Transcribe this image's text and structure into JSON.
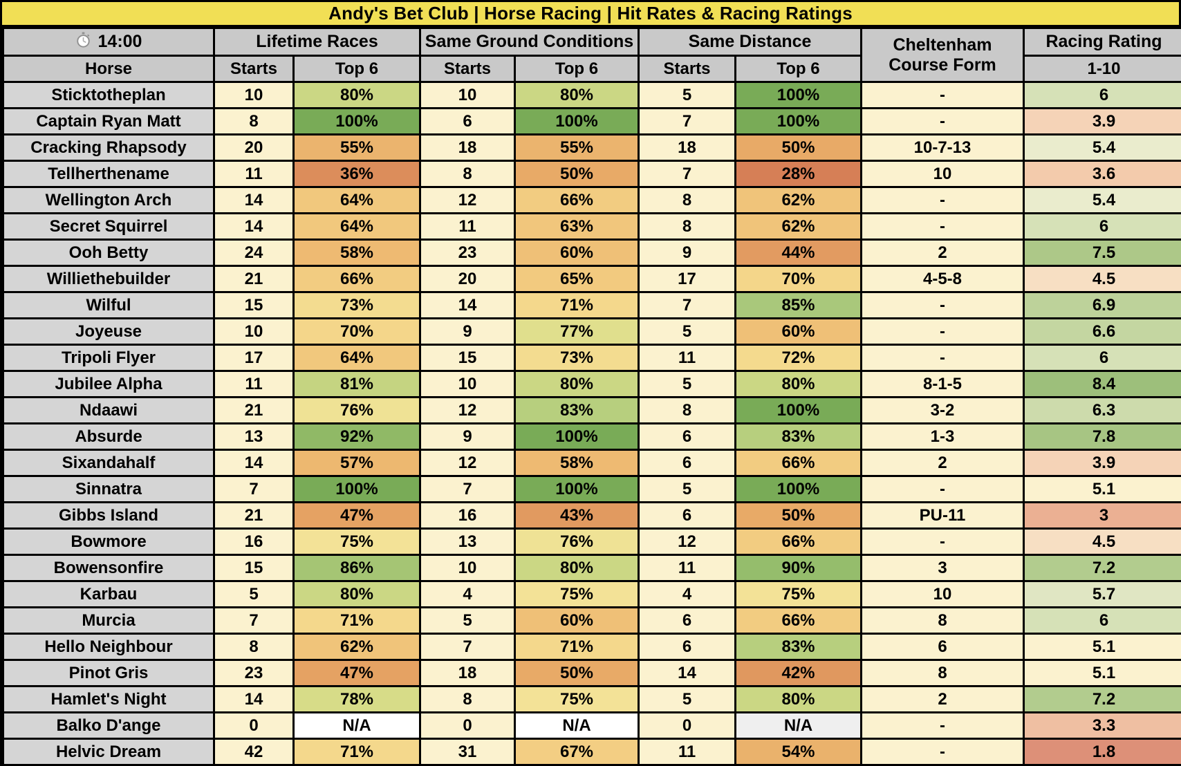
{
  "title": "Andy's Bet Club | Horse Racing | Hit Rates & Racing Ratings",
  "colors": {
    "title-bg": "#F1DF55",
    "header-bg": "#C9C9C9",
    "horse-bg": "#D5D5D5",
    "cream": "#FBF2CF",
    "border": "#000000",
    "top-green": "#79AB57",
    "low-red": "#D67F56",
    "na-white": "#FFFFFF",
    "na-gray": "#EFEFEF"
  },
  "header": {
    "time": "14:00",
    "time_icon": "stopwatch-icon",
    "horse_label": "Horse",
    "groups": [
      {
        "label": "Lifetime Races",
        "sub": [
          "Starts",
          "Top 6"
        ]
      },
      {
        "label": "Same Ground Conditions",
        "sub": [
          "Starts",
          "Top 6"
        ]
      },
      {
        "label": "Same Distance",
        "sub": [
          "Starts",
          "Top 6"
        ]
      }
    ],
    "course_form_label": "Cheltenham Course Form",
    "rating_label": "Racing Rating",
    "rating_scale": "1-10"
  },
  "chart_data": {
    "type": "table",
    "title": "Andy's Bet Club | Horse Racing | Hit Rates & Racing Ratings",
    "columns": [
      "Horse",
      "Lifetime Races Starts",
      "Lifetime Races Top 6",
      "Same Ground Conditions Starts",
      "Same Ground Conditions Top 6",
      "Same Distance Starts",
      "Same Distance Top 6",
      "Cheltenham Course Form",
      "Racing Rating 1-10"
    ],
    "rows": [
      {
        "horse": "Sticktotheplan",
        "cells": [
          {
            "v": "10"
          },
          {
            "v": "80%",
            "c": "#CBD784"
          },
          {
            "v": "10"
          },
          {
            "v": "80%",
            "c": "#CBD784"
          },
          {
            "v": "5"
          },
          {
            "v": "100%",
            "c": "#79AB57"
          },
          {
            "v": "-"
          },
          {
            "v": "6",
            "c": "#D6E1B7"
          }
        ]
      },
      {
        "horse": "Captain Ryan Matt",
        "cells": [
          {
            "v": "8"
          },
          {
            "v": "100%",
            "c": "#79AB57"
          },
          {
            "v": "6"
          },
          {
            "v": "100%",
            "c": "#79AB57"
          },
          {
            "v": "7"
          },
          {
            "v": "100%",
            "c": "#79AB57"
          },
          {
            "v": "-"
          },
          {
            "v": "3.9",
            "c": "#F5D3B7"
          }
        ]
      },
      {
        "horse": "Cracking Rhapsody",
        "cells": [
          {
            "v": "20"
          },
          {
            "v": "55%",
            "c": "#EBB46E"
          },
          {
            "v": "18"
          },
          {
            "v": "55%",
            "c": "#EBB46E"
          },
          {
            "v": "18"
          },
          {
            "v": "50%",
            "c": "#E8AA67"
          },
          {
            "v": "10-7-13"
          },
          {
            "v": "5.4",
            "c": "#EAECCD"
          }
        ]
      },
      {
        "horse": "Tellherthename",
        "cells": [
          {
            "v": "11"
          },
          {
            "v": "36%",
            "c": "#DC8D5B"
          },
          {
            "v": "8"
          },
          {
            "v": "50%",
            "c": "#E8AA67"
          },
          {
            "v": "7"
          },
          {
            "v": "28%",
            "c": "#D67F56"
          },
          {
            "v": "10"
          },
          {
            "v": "3.6",
            "c": "#F3CBAC"
          }
        ]
      },
      {
        "horse": "Wellington Arch",
        "cells": [
          {
            "v": "14"
          },
          {
            "v": "64%",
            "c": "#F1C87D"
          },
          {
            "v": "12"
          },
          {
            "v": "66%",
            "c": "#F2CC81"
          },
          {
            "v": "8"
          },
          {
            "v": "62%",
            "c": "#F0C47A"
          },
          {
            "v": "-"
          },
          {
            "v": "5.4",
            "c": "#EAECCD"
          }
        ]
      },
      {
        "horse": "Secret Squirrel",
        "cells": [
          {
            "v": "14"
          },
          {
            "v": "64%",
            "c": "#F1C87D"
          },
          {
            "v": "11"
          },
          {
            "v": "63%",
            "c": "#F1C67C"
          },
          {
            "v": "8"
          },
          {
            "v": "62%",
            "c": "#F0C47A"
          },
          {
            "v": "-"
          },
          {
            "v": "6",
            "c": "#D6E1B7"
          }
        ]
      },
      {
        "horse": "Ooh Betty",
        "cells": [
          {
            "v": "24"
          },
          {
            "v": "58%",
            "c": "#EEBA72"
          },
          {
            "v": "23"
          },
          {
            "v": "60%",
            "c": "#EFC077"
          },
          {
            "v": "9"
          },
          {
            "v": "44%",
            "c": "#E29B61"
          },
          {
            "v": "2"
          },
          {
            "v": "7.5",
            "c": "#ADC888"
          }
        ]
      },
      {
        "horse": "Williethebuilder",
        "cells": [
          {
            "v": "21"
          },
          {
            "v": "66%",
            "c": "#F2CC81"
          },
          {
            "v": "20"
          },
          {
            "v": "65%",
            "c": "#F2CA7F"
          },
          {
            "v": "17"
          },
          {
            "v": "70%",
            "c": "#F4D68A"
          },
          {
            "v": "4-5-8"
          },
          {
            "v": "4.5",
            "c": "#F7DFC3"
          }
        ]
      },
      {
        "horse": "Wilful",
        "cells": [
          {
            "v": "15"
          },
          {
            "v": "73%",
            "c": "#F3DC90"
          },
          {
            "v": "14"
          },
          {
            "v": "71%",
            "c": "#F4D88C"
          },
          {
            "v": "7"
          },
          {
            "v": "85%",
            "c": "#A9C87B"
          },
          {
            "v": "-"
          },
          {
            "v": "6.9",
            "c": "#BDD29A"
          }
        ]
      },
      {
        "horse": "Joyeuse",
        "cells": [
          {
            "v": "10"
          },
          {
            "v": "70%",
            "c": "#F4D68A"
          },
          {
            "v": "9"
          },
          {
            "v": "77%",
            "c": "#E0DF8D"
          },
          {
            "v": "5"
          },
          {
            "v": "60%",
            "c": "#EFC077"
          },
          {
            "v": "-"
          },
          {
            "v": "6.6",
            "c": "#C4D6A1"
          }
        ]
      },
      {
        "horse": "Tripoli Flyer",
        "cells": [
          {
            "v": "17"
          },
          {
            "v": "64%",
            "c": "#F1C87D"
          },
          {
            "v": "15"
          },
          {
            "v": "73%",
            "c": "#F3DC90"
          },
          {
            "v": "11"
          },
          {
            "v": "72%",
            "c": "#F4DA8E"
          },
          {
            "v": "-"
          },
          {
            "v": "6",
            "c": "#D6E1B7"
          }
        ]
      },
      {
        "horse": "Jubilee Alpha",
        "cells": [
          {
            "v": "11"
          },
          {
            "v": "81%",
            "c": "#C5D481"
          },
          {
            "v": "10"
          },
          {
            "v": "80%",
            "c": "#CBD784"
          },
          {
            "v": "5"
          },
          {
            "v": "80%",
            "c": "#CBD784"
          },
          {
            "v": "8-1-5"
          },
          {
            "v": "8.4",
            "c": "#9DBF7B"
          }
        ]
      },
      {
        "horse": "Ndaawi",
        "cells": [
          {
            "v": "21"
          },
          {
            "v": "76%",
            "c": "#EFE295"
          },
          {
            "v": "12"
          },
          {
            "v": "83%",
            "c": "#B7CF7E"
          },
          {
            "v": "8"
          },
          {
            "v": "100%",
            "c": "#79AB57"
          },
          {
            "v": "3-2"
          },
          {
            "v": "6.3",
            "c": "#CDDBAC"
          }
        ]
      },
      {
        "horse": "Absurde",
        "cells": [
          {
            "v": "13"
          },
          {
            "v": "92%",
            "c": "#90B966"
          },
          {
            "v": "9"
          },
          {
            "v": "100%",
            "c": "#79AB57"
          },
          {
            "v": "6"
          },
          {
            "v": "83%",
            "c": "#B7CF7E"
          },
          {
            "v": "1-3"
          },
          {
            "v": "7.8",
            "c": "#A7C583"
          }
        ]
      },
      {
        "horse": "Sixandahalf",
        "cells": [
          {
            "v": "14"
          },
          {
            "v": "57%",
            "c": "#EDB870"
          },
          {
            "v": "12"
          },
          {
            "v": "58%",
            "c": "#EEBA72"
          },
          {
            "v": "6"
          },
          {
            "v": "66%",
            "c": "#F2CC81"
          },
          {
            "v": "2"
          },
          {
            "v": "3.9",
            "c": "#F5D3B7"
          }
        ]
      },
      {
        "horse": "Sinnatra",
        "cells": [
          {
            "v": "7"
          },
          {
            "v": "100%",
            "c": "#79AB57"
          },
          {
            "v": "7"
          },
          {
            "v": "100%",
            "c": "#79AB57"
          },
          {
            "v": "5"
          },
          {
            "v": "100%",
            "c": "#79AB57"
          },
          {
            "v": "-"
          },
          {
            "v": "5.1"
          }
        ]
      },
      {
        "horse": "Gibbs Island",
        "cells": [
          {
            "v": "21"
          },
          {
            "v": "47%",
            "c": "#E5A263"
          },
          {
            "v": "16"
          },
          {
            "v": "43%",
            "c": "#E19A60"
          },
          {
            "v": "6"
          },
          {
            "v": "50%",
            "c": "#E8AA67"
          },
          {
            "v": "PU-11"
          },
          {
            "v": "3",
            "c": "#EBB093"
          }
        ]
      },
      {
        "horse": "Bowmore",
        "cells": [
          {
            "v": "16"
          },
          {
            "v": "75%",
            "c": "#F3E297"
          },
          {
            "v": "13"
          },
          {
            "v": "76%",
            "c": "#EFE295"
          },
          {
            "v": "12"
          },
          {
            "v": "66%",
            "c": "#F2CC81"
          },
          {
            "v": "-"
          },
          {
            "v": "4.5",
            "c": "#F7DFC3"
          }
        ]
      },
      {
        "horse": "Bowensonfire",
        "cells": [
          {
            "v": "15"
          },
          {
            "v": "86%",
            "c": "#A5C574"
          },
          {
            "v": "10"
          },
          {
            "v": "80%",
            "c": "#CBD784"
          },
          {
            "v": "11"
          },
          {
            "v": "90%",
            "c": "#95BD6C"
          },
          {
            "v": "3"
          },
          {
            "v": "7.2",
            "c": "#B2CC8E"
          }
        ]
      },
      {
        "horse": "Karbau",
        "cells": [
          {
            "v": "5"
          },
          {
            "v": "80%",
            "c": "#CBD784"
          },
          {
            "v": "4"
          },
          {
            "v": "75%",
            "c": "#F3E297"
          },
          {
            "v": "4"
          },
          {
            "v": "75%",
            "c": "#F3E297"
          },
          {
            "v": "10"
          },
          {
            "v": "5.7",
            "c": "#E0E6C3"
          }
        ]
      },
      {
        "horse": "Murcia",
        "cells": [
          {
            "v": "7"
          },
          {
            "v": "71%",
            "c": "#F4D88C"
          },
          {
            "v": "5"
          },
          {
            "v": "60%",
            "c": "#EFC077"
          },
          {
            "v": "6"
          },
          {
            "v": "66%",
            "c": "#F2CC81"
          },
          {
            "v": "8"
          },
          {
            "v": "6",
            "c": "#D6E1B7"
          }
        ]
      },
      {
        "horse": "Hello Neighbour",
        "cells": [
          {
            "v": "8"
          },
          {
            "v": "62%",
            "c": "#F0C47A"
          },
          {
            "v": "7"
          },
          {
            "v": "71%",
            "c": "#F4D88C"
          },
          {
            "v": "6"
          },
          {
            "v": "83%",
            "c": "#B7CF7E"
          },
          {
            "v": "6"
          },
          {
            "v": "5.1"
          }
        ]
      },
      {
        "horse": "Pinot Gris",
        "cells": [
          {
            "v": "23"
          },
          {
            "v": "47%",
            "c": "#E5A263"
          },
          {
            "v": "18"
          },
          {
            "v": "50%",
            "c": "#E8AA67"
          },
          {
            "v": "14"
          },
          {
            "v": "42%",
            "c": "#E0985F"
          },
          {
            "v": "8"
          },
          {
            "v": "5.1"
          }
        ]
      },
      {
        "horse": "Hamlet's Night",
        "cells": [
          {
            "v": "14"
          },
          {
            "v": "78%",
            "c": "#D7DC88"
          },
          {
            "v": "8"
          },
          {
            "v": "75%",
            "c": "#F3E297"
          },
          {
            "v": "5"
          },
          {
            "v": "80%",
            "c": "#CBD784"
          },
          {
            "v": "2"
          },
          {
            "v": "7.2",
            "c": "#B2CC8E"
          }
        ]
      },
      {
        "horse": "Balko D'ange",
        "cells": [
          {
            "v": "0"
          },
          {
            "v": "N/A",
            "c": "#FFFFFF"
          },
          {
            "v": "0"
          },
          {
            "v": "N/A",
            "c": "#FFFFFF"
          },
          {
            "v": "0"
          },
          {
            "v": "N/A",
            "c": "#EFEFEF"
          },
          {
            "v": "-"
          },
          {
            "v": "3.3",
            "c": "#EFBFA2"
          }
        ]
      },
      {
        "horse": "Helvic Dream",
        "cells": [
          {
            "v": "42"
          },
          {
            "v": "71%",
            "c": "#F4D88C"
          },
          {
            "v": "31"
          },
          {
            "v": "67%",
            "c": "#F3CE83"
          },
          {
            "v": "11"
          },
          {
            "v": "54%",
            "c": "#EAB26C"
          },
          {
            "v": "-"
          },
          {
            "v": "1.8",
            "c": "#DD9078"
          }
        ]
      }
    ]
  }
}
